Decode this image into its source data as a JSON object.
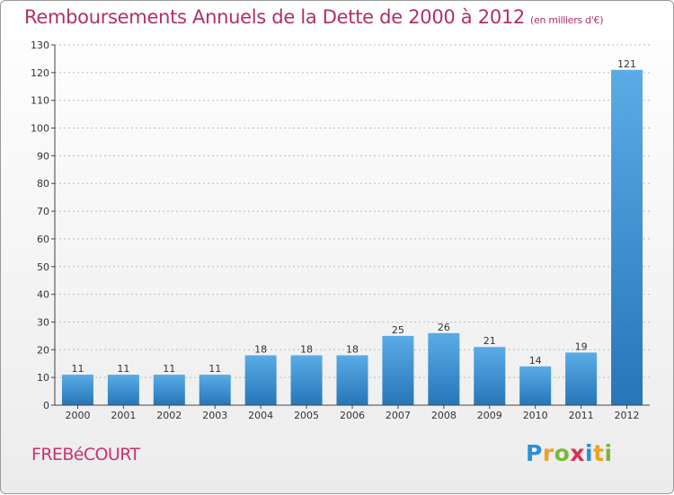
{
  "title": "Remboursements Annuels de la Dette de 2000 à 2012",
  "unit": "(en milliers d'€)",
  "commune": "FREBéCOURT",
  "logo": {
    "letters": [
      "P",
      "r",
      "o",
      "x",
      "i",
      "t",
      "i"
    ],
    "colors": [
      "#2b8fd6",
      "#f0a020",
      "#7ab83a",
      "#d8324e",
      "#2b8fd6",
      "#f0a020",
      "#7ab83a"
    ]
  },
  "colors": {
    "bar_light": "#5aace6",
    "bar_dark": "#2676b8",
    "axis": "#444444",
    "grid": "#bcbcbc"
  },
  "chart_data": {
    "type": "bar",
    "categories": [
      "2000",
      "2001",
      "2002",
      "2003",
      "2004",
      "2005",
      "2006",
      "2007",
      "2008",
      "2009",
      "2010",
      "2011",
      "2012"
    ],
    "values": [
      11,
      11,
      11,
      11,
      18,
      18,
      18,
      25,
      26,
      21,
      14,
      19,
      121
    ],
    "ylim": [
      0,
      130
    ],
    "yticks": [
      0,
      10,
      20,
      30,
      40,
      50,
      60,
      70,
      80,
      90,
      100,
      110,
      120,
      130
    ],
    "grid": true,
    "legend": "none"
  }
}
